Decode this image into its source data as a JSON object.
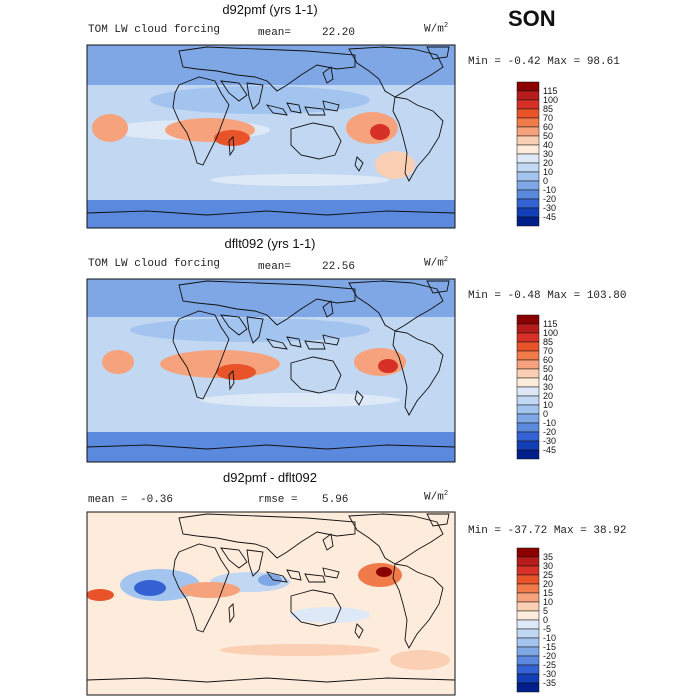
{
  "season": "SON",
  "panels": [
    {
      "title": "d92pmf (yrs 1-1)",
      "left_label": "TOM LW cloud forcing",
      "stat1_label": "mean=",
      "stat1_value": "22.20",
      "stat2_label": "",
      "stat2_value": "",
      "units_base": "W/m",
      "units_exp": "2",
      "minmax": "Min =  -0.42 Max =  98.61",
      "colorbar_levels": [
        "115",
        "100",
        "85",
        "70",
        "60",
        "50",
        "40",
        "30",
        "20",
        "10",
        "0",
        "-10",
        "-20",
        "-30",
        "-45"
      ],
      "colorbar_colors": [
        "#8b0000",
        "#b71c1c",
        "#d73027",
        "#e8532a",
        "#f07a4a",
        "#f6a37d",
        "#fbcfb4",
        "#fdebdc",
        "#dde9f7",
        "#c1d7f2",
        "#a3c4ee",
        "#7fa7e6",
        "#5a89de",
        "#3462d2",
        "#123fb5",
        "#001f8a"
      ]
    },
    {
      "title": "dflt092 (yrs 1-1)",
      "left_label": "TOM LW cloud forcing",
      "stat1_label": "mean=",
      "stat1_value": "22.56",
      "stat2_label": "",
      "stat2_value": "",
      "units_base": "W/m",
      "units_exp": "2",
      "minmax": "Min =  -0.48 Max = 103.80",
      "colorbar_levels": [
        "115",
        "100",
        "85",
        "70",
        "60",
        "50",
        "40",
        "30",
        "20",
        "10",
        "0",
        "-10",
        "-20",
        "-30",
        "-45"
      ],
      "colorbar_colors": [
        "#8b0000",
        "#b71c1c",
        "#d73027",
        "#e8532a",
        "#f07a4a",
        "#f6a37d",
        "#fbcfb4",
        "#fdebdc",
        "#dde9f7",
        "#c1d7f2",
        "#a3c4ee",
        "#7fa7e6",
        "#5a89de",
        "#3462d2",
        "#123fb5",
        "#001f8a"
      ]
    },
    {
      "title": "d92pmf - dflt092",
      "left_label": "",
      "stat1_label": "mean =",
      "stat1_value": "-0.36",
      "stat2_label": "rmse =",
      "stat2_value": "5.96",
      "units_base": "W/m",
      "units_exp": "2",
      "minmax": "Min = -37.72 Max =  38.92",
      "colorbar_levels": [
        "35",
        "30",
        "25",
        "20",
        "15",
        "10",
        "5",
        "0",
        "-5",
        "-10",
        "-15",
        "-20",
        "-25",
        "-30",
        "-35"
      ],
      "colorbar_colors": [
        "#8b0000",
        "#b71c1c",
        "#d73027",
        "#e8532a",
        "#f07a4a",
        "#f6a37d",
        "#fbcfb4",
        "#fdebdc",
        "#dde9f7",
        "#c1d7f2",
        "#a3c4ee",
        "#7fa7e6",
        "#5a89de",
        "#3462d2",
        "#123fb5",
        "#001f8a"
      ]
    }
  ]
}
